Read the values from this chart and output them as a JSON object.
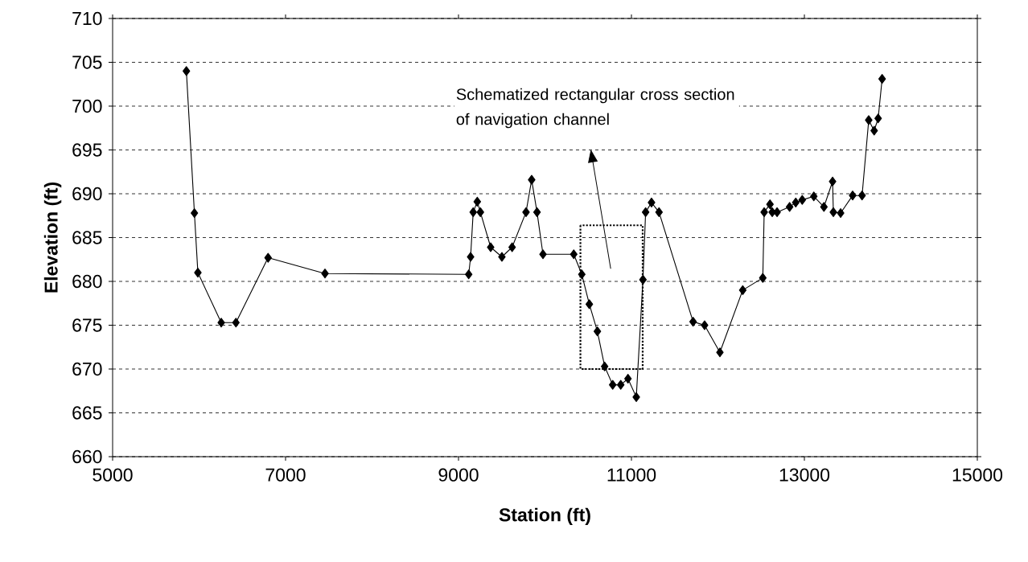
{
  "chart_data": {
    "type": "line",
    "xlabel": "Station (ft)",
    "ylabel": "Elevation (ft)",
    "xlim": [
      5000,
      15000
    ],
    "xticks": [
      5000,
      7000,
      9000,
      11000,
      13000,
      15000
    ],
    "ylim": [
      660,
      710
    ],
    "yticks": [
      660,
      665,
      670,
      675,
      680,
      685,
      690,
      695,
      700,
      705,
      710
    ],
    "grid": "y",
    "marker": "diamond",
    "line_style": "solid",
    "annotations": [
      "Schematized rectangular cross section of navigation channel"
    ],
    "series": [
      {
        "color": "#000000",
        "x": [
          5853,
          5946,
          5986,
          6256,
          6426,
          6798,
          7456,
          9118,
          9140,
          9170,
          9217,
          9253,
          9372,
          9502,
          9620,
          9781,
          9846,
          9908,
          9977,
          10333,
          10426,
          10513,
          10606,
          10690,
          10783,
          10876,
          10960,
          11056,
          11133,
          11164,
          11232,
          11319,
          11713,
          11846,
          12023,
          12287,
          12519,
          12535,
          12602,
          12628,
          12684,
          12829,
          12900,
          12975,
          13109,
          13226,
          13326,
          13335,
          13419,
          13558,
          13667,
          13744,
          13807,
          13853,
          13899
        ],
        "values": [
          704.0,
          687.8,
          681.0,
          675.3,
          675.3,
          682.7,
          680.9,
          680.8,
          682.8,
          687.9,
          689.1,
          687.9,
          683.9,
          682.8,
          683.9,
          687.9,
          691.6,
          687.9,
          683.1,
          683.1,
          680.8,
          677.4,
          674.3,
          670.3,
          668.2,
          668.2,
          668.9,
          666.8,
          680.2,
          687.9,
          689.0,
          687.9,
          675.4,
          675.0,
          671.9,
          679.0,
          680.4,
          687.9,
          688.8,
          687.9,
          687.9,
          688.5,
          689.0,
          689.3,
          689.7,
          688.5,
          691.4,
          687.9,
          687.8,
          689.8,
          689.8,
          698.4,
          697.2,
          698.6,
          703.1
        ]
      }
    ]
  }
}
